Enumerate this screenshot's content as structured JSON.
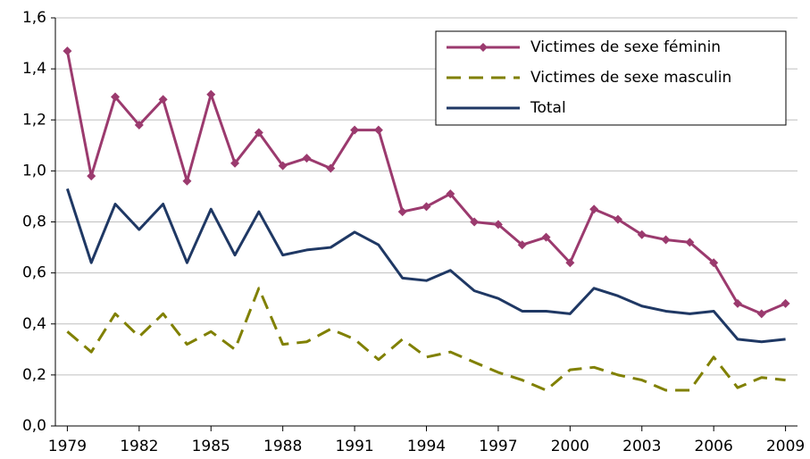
{
  "chart_data": {
    "type": "line",
    "x": [
      1979,
      1980,
      1981,
      1982,
      1983,
      1984,
      1985,
      1986,
      1987,
      1988,
      1989,
      1990,
      1991,
      1992,
      1993,
      1994,
      1995,
      1996,
      1997,
      1998,
      1999,
      2000,
      2001,
      2002,
      2003,
      2004,
      2005,
      2006,
      2007,
      2008,
      2009
    ],
    "xlim": [
      1978.5,
      2009.5
    ],
    "xticks": [
      1979,
      1982,
      1985,
      1988,
      1991,
      1994,
      1997,
      2000,
      2003,
      2006,
      2009
    ],
    "ylim": [
      0,
      1.6
    ],
    "yticks": [
      {
        "value": 0,
        "label": "0,0"
      },
      {
        "value": 0.2,
        "label": "0,2"
      },
      {
        "value": 0.4,
        "label": "0,4"
      },
      {
        "value": 0.6,
        "label": "0,6"
      },
      {
        "value": 0.8,
        "label": "0,8"
      },
      {
        "value": 1.0,
        "label": "1,0"
      },
      {
        "value": 1.2,
        "label": "1,2"
      },
      {
        "value": 1.4,
        "label": "1,4"
      },
      {
        "value": 1.6,
        "label": "1,6"
      }
    ],
    "grid": true,
    "legend": "top-right",
    "series": [
      {
        "name": "Victimes de sexe féminin",
        "color": "#9b3a6e",
        "marker": "diamond",
        "dashed": false,
        "values": [
          1.47,
          0.98,
          1.29,
          1.18,
          1.28,
          0.96,
          1.3,
          1.03,
          1.15,
          1.02,
          1.05,
          1.01,
          1.16,
          1.16,
          0.84,
          0.86,
          0.91,
          0.8,
          0.79,
          0.71,
          0.74,
          0.64,
          0.85,
          0.81,
          0.75,
          0.73,
          0.72,
          0.64,
          0.48,
          0.44,
          0.48
        ]
      },
      {
        "name": "Victimes de sexe masculin",
        "color": "#808000",
        "marker": "none",
        "dashed": true,
        "values": [
          0.37,
          0.29,
          0.44,
          0.35,
          0.44,
          0.32,
          0.37,
          0.3,
          0.54,
          0.32,
          0.33,
          0.38,
          0.34,
          0.26,
          0.34,
          0.27,
          0.29,
          0.25,
          0.21,
          0.18,
          0.14,
          0.22,
          0.23,
          0.2,
          0.18,
          0.14,
          0.14,
          0.27,
          0.15,
          0.19,
          0.18
        ]
      },
      {
        "name": "Total",
        "color": "#1f3864",
        "marker": "none",
        "dashed": false,
        "values": [
          0.93,
          0.64,
          0.87,
          0.77,
          0.87,
          0.64,
          0.85,
          0.67,
          0.84,
          0.67,
          0.69,
          0.7,
          0.76,
          0.71,
          0.58,
          0.57,
          0.61,
          0.53,
          0.5,
          0.45,
          0.45,
          0.44,
          0.54,
          0.51,
          0.47,
          0.45,
          0.44,
          0.45,
          0.34,
          0.33,
          0.34
        ]
      }
    ]
  }
}
